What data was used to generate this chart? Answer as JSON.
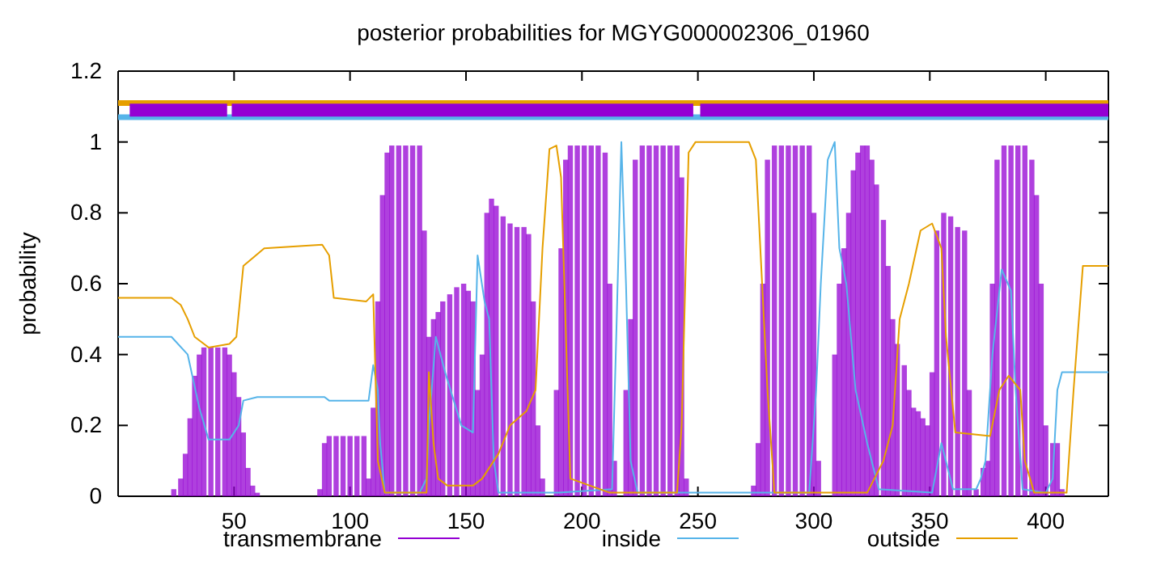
{
  "chart_data": {
    "type": "line",
    "title": "posterior probabilities for MGYG000002306_01960",
    "ylabel": "probability",
    "xlim": [
      0,
      427
    ],
    "ylim": [
      0,
      1.2
    ],
    "xticks": [
      50,
      100,
      150,
      200,
      250,
      300,
      350,
      400
    ],
    "yticks": [
      0,
      {
        "value": 0.2,
        "label": "0.2"
      },
      {
        "value": 0.4,
        "label": "0.4"
      },
      {
        "value": 0.6,
        "label": "0.6"
      },
      {
        "value": 0.8,
        "label": "0.8"
      },
      1,
      {
        "value": 1.2,
        "label": "1.2"
      }
    ],
    "legend": "bottom",
    "grid": false,
    "series": [
      {
        "name": "transmembrane",
        "type": "bar",
        "color": "#9400d3",
        "x": [
          24,
          27,
          29,
          31,
          33,
          35,
          37,
          40,
          43,
          46,
          48,
          50,
          52,
          54,
          56,
          58,
          60,
          87,
          89,
          91,
          94,
          97,
          100,
          103,
          106,
          108,
          110,
          112,
          114,
          116,
          118,
          121,
          124,
          127,
          130,
          132,
          134,
          136,
          138,
          140,
          143,
          146,
          149,
          151,
          153,
          155,
          157,
          159,
          161,
          163,
          166,
          169,
          172,
          175,
          177,
          179,
          181,
          183,
          189,
          191,
          193,
          195,
          198,
          201,
          204,
          207,
          210,
          212,
          214,
          219,
          221,
          223,
          226,
          229,
          232,
          235,
          238,
          241,
          243,
          245,
          274,
          276,
          278,
          280,
          283,
          286,
          289,
          292,
          295,
          298,
          300,
          302,
          309,
          311,
          313,
          315,
          317,
          319,
          321,
          323,
          325,
          327,
          330,
          332,
          334,
          336,
          339,
          341,
          343,
          345,
          347,
          349,
          351,
          353,
          356,
          359,
          362,
          365,
          367,
          370,
          373,
          375,
          377,
          379,
          382,
          385,
          388,
          391,
          394,
          396,
          398,
          400,
          403,
          405,
          407
        ],
        "values": [
          0.02,
          0.05,
          0.12,
          0.22,
          0.34,
          0.4,
          0.42,
          0.42,
          0.42,
          0.42,
          0.4,
          0.35,
          0.28,
          0.18,
          0.08,
          0.03,
          0.01,
          0.02,
          0.15,
          0.17,
          0.17,
          0.17,
          0.17,
          0.17,
          0.17,
          0.05,
          0.25,
          0.55,
          0.85,
          0.97,
          0.99,
          0.99,
          0.99,
          0.99,
          0.99,
          0.75,
          0.45,
          0.5,
          0.52,
          0.55,
          0.57,
          0.59,
          0.6,
          0.58,
          0.55,
          0.3,
          0.4,
          0.8,
          0.84,
          0.82,
          0.79,
          0.77,
          0.76,
          0.76,
          0.74,
          0.55,
          0.2,
          0.05,
          0.3,
          0.7,
          0.95,
          0.99,
          0.99,
          0.99,
          0.99,
          0.99,
          0.97,
          0.6,
          0.1,
          0.3,
          0.5,
          0.95,
          0.99,
          0.99,
          0.99,
          0.99,
          0.99,
          0.99,
          0.9,
          0.05,
          0.03,
          0.15,
          0.6,
          0.95,
          0.99,
          0.99,
          0.99,
          0.99,
          0.99,
          0.99,
          0.8,
          0.1,
          0.4,
          0.6,
          0.7,
          0.8,
          0.92,
          0.97,
          0.99,
          0.99,
          0.95,
          0.88,
          0.78,
          0.65,
          0.5,
          0.43,
          0.37,
          0.3,
          0.25,
          0.24,
          0.22,
          0.2,
          0.35,
          0.75,
          0.8,
          0.79,
          0.76,
          0.75,
          0.3,
          0.02,
          0.08,
          0.1,
          0.6,
          0.95,
          0.99,
          0.99,
          0.99,
          0.99,
          0.95,
          0.85,
          0.6,
          0.2,
          0.15,
          0.15,
          0.02
        ]
      },
      {
        "name": "inside",
        "color": "#56b4e9",
        "x": [
          0,
          23,
          30,
          35,
          39,
          48,
          52,
          54,
          60,
          67,
          89,
          91,
          108,
          110,
          112,
          113,
          115,
          130,
          133,
          134,
          137,
          139,
          141,
          148,
          153,
          155,
          158,
          160,
          162,
          164,
          190,
          213,
          215,
          217,
          219,
          221,
          224,
          298,
          301,
          303,
          306,
          309,
          311,
          314,
          318,
          323,
          328,
          351,
          355,
          360,
          370,
          372,
          374,
          377,
          381,
          385,
          387,
          390,
          400,
          403,
          405,
          407,
          427
        ],
        "values": [
          0.45,
          0.45,
          0.4,
          0.25,
          0.16,
          0.16,
          0.2,
          0.27,
          0.28,
          0.28,
          0.28,
          0.27,
          0.27,
          0.37,
          0.3,
          0.15,
          0.01,
          0.01,
          0.05,
          0.2,
          0.45,
          0.4,
          0.35,
          0.2,
          0.18,
          0.68,
          0.55,
          0.5,
          0.1,
          0.01,
          0.01,
          0.02,
          0.5,
          1.0,
          0.6,
          0.1,
          0.01,
          0.01,
          0.3,
          0.6,
          0.95,
          1.0,
          0.7,
          0.6,
          0.3,
          0.15,
          0.02,
          0.01,
          0.15,
          0.02,
          0.02,
          0.05,
          0.1,
          0.4,
          0.64,
          0.58,
          0.3,
          0.02,
          0.01,
          0.05,
          0.3,
          0.35,
          0.35
        ]
      },
      {
        "name": "outside",
        "color": "#e69f00",
        "x": [
          0,
          23,
          27,
          30,
          33,
          39,
          48,
          51,
          54,
          63,
          88,
          91,
          93,
          107,
          110,
          112,
          115,
          133,
          134,
          136,
          138,
          142,
          153,
          157,
          164,
          169,
          176,
          180,
          183,
          186,
          189,
          191,
          195,
          212,
          241,
          243,
          246,
          249,
          272,
          275,
          280,
          283,
          323,
          330,
          334,
          337,
          341,
          346,
          351,
          355,
          357,
          361,
          376,
          380,
          384,
          389,
          391,
          395,
          409,
          412,
          416,
          427
        ],
        "values": [
          0.56,
          0.56,
          0.54,
          0.5,
          0.45,
          0.42,
          0.43,
          0.45,
          0.65,
          0.7,
          0.71,
          0.68,
          0.56,
          0.55,
          0.57,
          0.1,
          0.01,
          0.01,
          0.35,
          0.15,
          0.05,
          0.03,
          0.03,
          0.05,
          0.12,
          0.2,
          0.24,
          0.3,
          0.7,
          0.98,
          0.99,
          0.9,
          0.05,
          0.01,
          0.01,
          0.2,
          0.97,
          1.0,
          1.0,
          0.95,
          0.3,
          0.01,
          0.01,
          0.1,
          0.2,
          0.5,
          0.6,
          0.75,
          0.77,
          0.7,
          0.45,
          0.18,
          0.17,
          0.3,
          0.34,
          0.3,
          0.1,
          0.01,
          0.01,
          0.3,
          0.65,
          0.65
        ]
      },
      {
        "color": "#e69f00",
        "x": [
          0,
          427
        ],
        "values": [
          1.11,
          1.11
        ]
      },
      {
        "color": "#56b4e9",
        "x": [
          0,
          427
        ],
        "values": [
          1.07,
          1.07
        ]
      },
      {
        "color": "#9400d3",
        "x": [
          5,
          47
        ],
        "values": [
          1.09,
          1.09
        ]
      },
      {
        "color": "#9400d3",
        "x": [
          49,
          248
        ],
        "values": [
          1.09,
          1.09
        ]
      },
      {
        "color": "#9400d3",
        "x": [
          251,
          427
        ],
        "values": [
          1.09,
          1.09
        ]
      }
    ]
  }
}
